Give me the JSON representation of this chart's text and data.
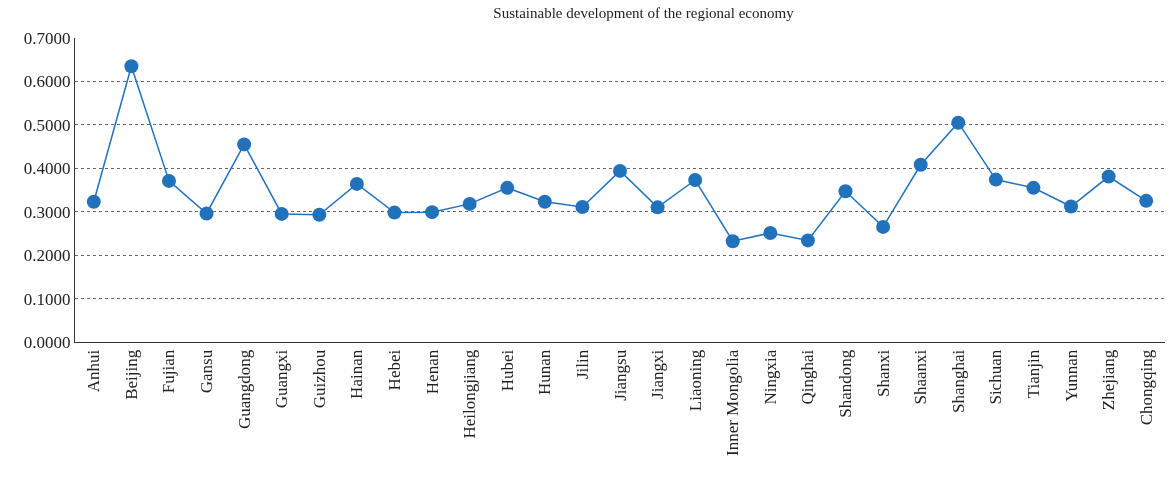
{
  "chart_data": {
    "type": "line",
    "title": "Sustainable development of the regional economy",
    "categories": [
      "Anhui",
      "Beijing",
      "Fujian",
      "Gansu",
      "Guangdong",
      "Guangxi",
      "Guizhou",
      "Hainan",
      "Hebei",
      "Henan",
      "Heilongjiang",
      "Hubei",
      "Hunan",
      "Jilin",
      "Jiangsu",
      "Jiangxi",
      "Liaoning",
      "Inner Mongolia",
      "Ningxia",
      "Qinghai",
      "Shandong",
      "Shanxi",
      "Shaanxi",
      "Shanghai",
      "Sichuan",
      "Tianjin",
      "Yunnan",
      "Zhejiang",
      "Chongqing"
    ],
    "series": [
      {
        "color": "#2272bb",
        "values": [
          0.323,
          0.635,
          0.371,
          0.296,
          0.455,
          0.295,
          0.293,
          0.364,
          0.298,
          0.299,
          0.318,
          0.355,
          0.323,
          0.311,
          0.394,
          0.31,
          0.373,
          0.232,
          0.251,
          0.234,
          0.347,
          0.265,
          0.408,
          0.505,
          0.374,
          0.355,
          0.312,
          0.381,
          0.325
        ]
      }
    ],
    "ylim": [
      0,
      0.7
    ],
    "yticks": [
      {
        "value": 0,
        "label": "0.0000"
      },
      {
        "value": 0.1,
        "label": "0.1000"
      },
      {
        "value": 0.2,
        "label": "0.2000"
      },
      {
        "value": 0.3,
        "label": "0.3000"
      },
      {
        "value": 0.4,
        "label": "0.4000"
      },
      {
        "value": 0.5,
        "label": "0.5000"
      },
      {
        "value": 0.6,
        "label": "0.6000"
      },
      {
        "value": 0.7,
        "label": "0.7000"
      }
    ],
    "grid": "y",
    "marker": "circle",
    "line_style": "solid",
    "legend": false
  }
}
